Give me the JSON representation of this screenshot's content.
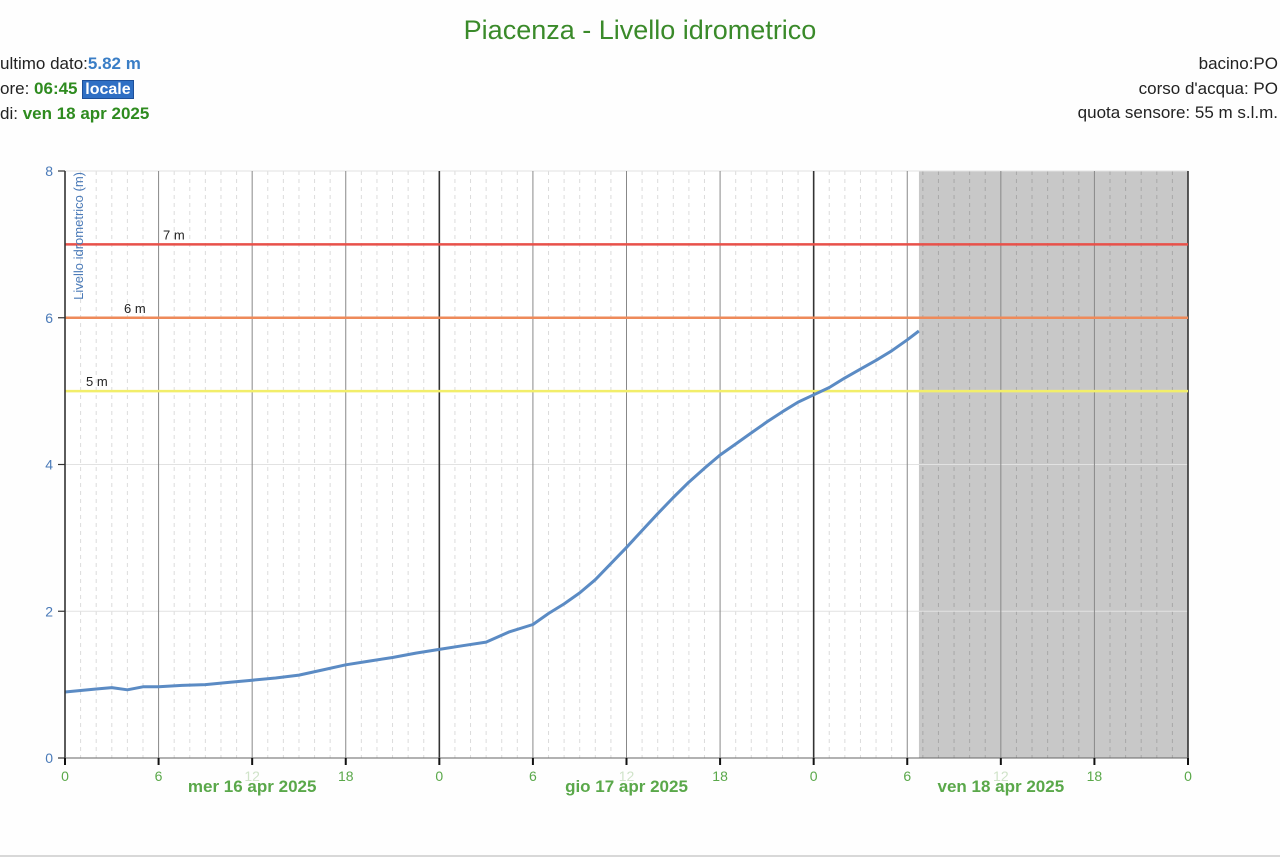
{
  "header": {
    "title": "Piacenza - Livello idrometrico",
    "left": {
      "last_data_label": "ultimo dato:",
      "last_data_value": "5.82 m",
      "time_label": "ore: ",
      "time_value": "06:45",
      "time_zone_badge": "locale",
      "date_label": "di: ",
      "date_value": "ven 18 apr 2025"
    },
    "right": {
      "basin": "bacino:PO",
      "river": "corso d'acqua: PO",
      "sensor_altitude": "quota sensore: 55 m s.l.m."
    }
  },
  "colors": {
    "title": "#3a8a2a",
    "series": "#5b8bc4",
    "threshold_7": "#e8514a",
    "threshold_6": "#ee8a5a",
    "threshold_5": "#f2ee6a",
    "future_shade": "#c8c8c8",
    "x_labels": "#5aa84a",
    "y_labels": "#4a7ab8"
  },
  "chart_data": {
    "type": "line",
    "title": "Piacenza - Livello idrometrico",
    "xlabel": "",
    "ylabel": "Livello idrometrico (m)",
    "ylim": [
      0,
      8
    ],
    "yticks": [
      0,
      2,
      4,
      6,
      8
    ],
    "xlim_hours": [
      0,
      72
    ],
    "x_tick_labels": [
      "0",
      "6",
      "12",
      "18",
      "0",
      "6",
      "12",
      "18",
      "0",
      "6",
      "12",
      "18",
      "0"
    ],
    "day_labels": [
      "mer 16 apr 2025",
      "gio 17 apr 2025",
      "ven 18 apr 2025"
    ],
    "grid": true,
    "shaded_region_hours": [
      54.75,
      72
    ],
    "thresholds": [
      {
        "label": "7 m",
        "value": 7,
        "color": "#e8514a"
      },
      {
        "label": "6 m",
        "value": 6,
        "color": "#ee8a5a"
      },
      {
        "label": "5 m",
        "value": 5,
        "color": "#f2ee6a"
      }
    ],
    "series": [
      {
        "name": "Livello idrometrico",
        "x_hours": [
          0,
          1,
          2,
          3,
          4,
          5,
          6,
          7.5,
          9,
          10.5,
          12,
          13.5,
          15,
          16.5,
          18,
          19.5,
          21,
          22.5,
          24,
          25.5,
          27,
          28.5,
          30,
          31,
          32,
          33,
          34,
          35,
          36,
          37,
          38,
          39,
          40,
          41,
          42,
          43,
          44,
          45,
          46,
          47,
          48,
          49,
          50,
          51,
          52,
          53,
          54,
          54.75
        ],
        "values": [
          0.9,
          0.92,
          0.94,
          0.96,
          0.93,
          0.97,
          0.97,
          0.99,
          1.0,
          1.03,
          1.06,
          1.09,
          1.13,
          1.2,
          1.27,
          1.32,
          1.37,
          1.43,
          1.48,
          1.53,
          1.58,
          1.72,
          1.82,
          1.97,
          2.1,
          2.25,
          2.43,
          2.65,
          2.87,
          3.1,
          3.33,
          3.55,
          3.76,
          3.95,
          4.13,
          4.28,
          4.43,
          4.58,
          4.72,
          4.85,
          4.95,
          5.05,
          5.18,
          5.3,
          5.42,
          5.55,
          5.7,
          5.82
        ]
      }
    ]
  }
}
